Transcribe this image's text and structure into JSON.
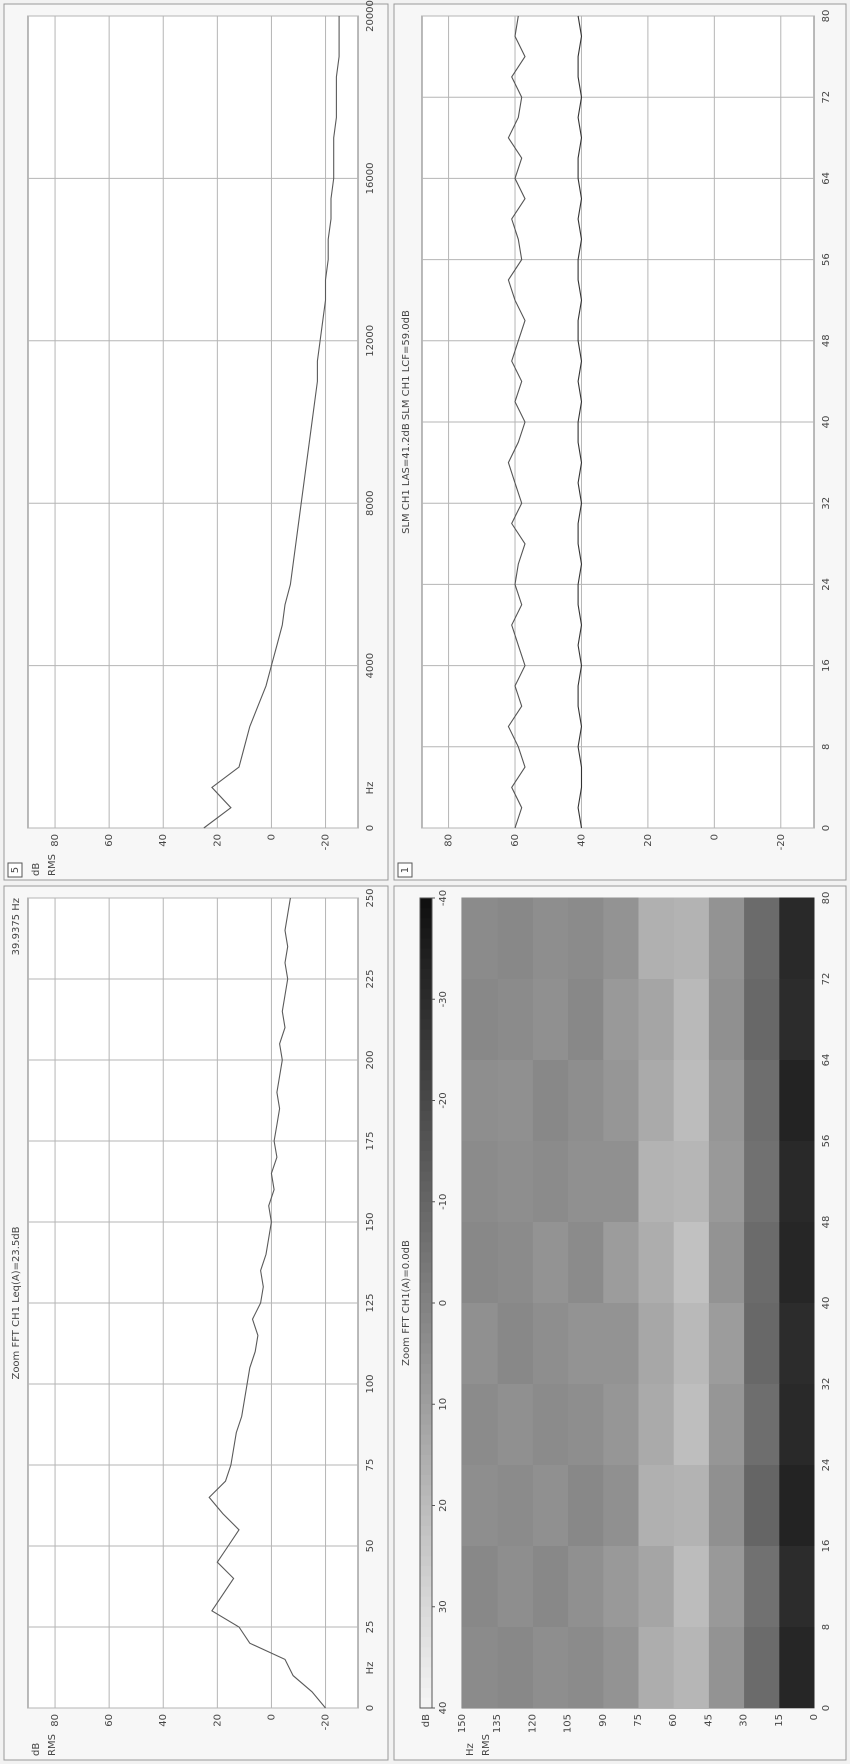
{
  "chart_data": [
    {
      "type": "line",
      "title": "Zoom FFT CH1 Leq(A)=23.5dB",
      "readout": "39.9375 Hz",
      "xlabel": "Hz",
      "ylabel": [
        "dB",
        "RMS"
      ],
      "x": [
        0,
        5,
        10,
        15,
        20,
        25,
        30,
        35,
        40,
        45,
        50,
        55,
        60,
        65,
        70,
        75,
        80,
        85,
        90,
        95,
        100,
        105,
        110,
        115,
        120,
        125,
        130,
        135,
        140,
        145,
        150,
        155,
        160,
        165,
        170,
        175,
        180,
        185,
        190,
        195,
        200,
        205,
        210,
        215,
        220,
        225,
        230,
        235,
        240,
        245,
        250
      ],
      "values": [
        -20,
        -15,
        -8,
        -5,
        8,
        12,
        22,
        18,
        14,
        20,
        16,
        12,
        18,
        23,
        17,
        15,
        14,
        13,
        11,
        10,
        9,
        8,
        6,
        5,
        7,
        4,
        3,
        4,
        2,
        1,
        0,
        1,
        -1,
        0,
        -2,
        -1,
        -2,
        -3,
        -2,
        -3,
        -4,
        -3,
        -5,
        -4,
        -5,
        -6,
        -5,
        -6,
        -5,
        -6,
        -7
      ],
      "color": "#5a5a5a",
      "xlim": [
        0,
        250
      ],
      "xticks": [
        0,
        25,
        50,
        75,
        100,
        125,
        150,
        175,
        200,
        225,
        250
      ],
      "ylim": [
        -32,
        90
      ],
      "yticks": [
        -20,
        0,
        20,
        40,
        60,
        80
      ],
      "grid": true
    },
    {
      "type": "line",
      "panel_id": "5",
      "xlabel": "Hz",
      "ylabel": [
        "dB",
        "RMS"
      ],
      "x": [
        0,
        500,
        1000,
        1500,
        2000,
        2500,
        3000,
        3500,
        4000,
        4500,
        5000,
        5500,
        6000,
        6500,
        7000,
        7500,
        8000,
        8500,
        9000,
        9500,
        10000,
        10500,
        11000,
        11500,
        12000,
        12500,
        13000,
        13500,
        14000,
        14500,
        15000,
        15500,
        16000,
        16500,
        17000,
        17500,
        18000,
        18500,
        19000,
        19500,
        20000
      ],
      "values": [
        25,
        15,
        22,
        12,
        10,
        8,
        5,
        2,
        0,
        -2,
        -4,
        -5,
        -7,
        -8,
        -9,
        -10,
        -11,
        -12,
        -13,
        -14,
        -15,
        -16,
        -17,
        -17,
        -18,
        -19,
        -20,
        -20,
        -21,
        -21,
        -22,
        -22,
        -23,
        -23,
        -23,
        -24,
        -24,
        -24,
        -25,
        -25,
        -25
      ],
      "color": "#5a5a5a",
      "xlim": [
        0,
        20000
      ],
      "xticks": [
        0,
        4000,
        8000,
        12000,
        16000,
        20000
      ],
      "ylim": [
        -32,
        90
      ],
      "yticks": [
        -20,
        0,
        20,
        40,
        60,
        80
      ],
      "grid": true
    },
    {
      "type": "heatmap",
      "title": "Zoom FFT CH1(A)=0.0dB",
      "ylabel": [
        "Hz",
        "RMS"
      ],
      "x_edges": [
        0,
        8,
        16,
        24,
        32,
        40,
        48,
        56,
        64,
        72,
        80
      ],
      "y_edges": [
        0,
        15,
        30,
        45,
        60,
        75,
        90,
        105,
        120,
        135,
        150
      ],
      "z": [
        [
          -32,
          -30,
          -33,
          -31,
          -30,
          -32,
          -31,
          -33,
          -30,
          -31
        ],
        [
          -8,
          -6,
          -10,
          -7,
          -9,
          -8,
          -6,
          -7,
          -9,
          -8
        ],
        [
          6,
          8,
          5,
          7,
          9,
          6,
          8,
          7,
          5,
          6
        ],
        [
          18,
          20,
          17,
          21,
          19,
          22,
          18,
          20,
          19,
          17
        ],
        [
          15,
          12,
          16,
          14,
          13,
          15,
          17,
          14,
          12,
          16
        ],
        [
          6,
          8,
          5,
          7,
          6,
          9,
          5,
          7,
          8,
          6
        ],
        [
          3,
          5,
          2,
          4,
          6,
          3,
          5,
          4,
          2,
          3
        ],
        [
          4,
          2,
          5,
          3,
          4,
          6,
          3,
          2,
          5,
          4
        ],
        [
          2,
          4,
          3,
          5,
          2,
          3,
          4,
          5,
          3,
          2
        ],
        [
          3,
          2,
          4,
          3,
          5,
          2,
          3,
          4,
          2,
          3
        ]
      ],
      "xlim": [
        0,
        80
      ],
      "xticks": [
        0,
        8,
        16,
        24,
        32,
        40,
        48,
        56,
        64,
        72,
        80
      ],
      "ylim": [
        0,
        150
      ],
      "yticks": [
        0,
        15,
        30,
        45,
        60,
        75,
        90,
        105,
        120,
        135,
        150
      ],
      "colorbar": {
        "label": "dB",
        "lim": [
          40,
          -40
        ],
        "ticks": [
          40,
          30,
          20,
          10,
          0,
          -10,
          -20,
          -30,
          -40
        ]
      }
    },
    {
      "type": "line",
      "panel_id": "1",
      "title": "SLM CH1 LAS=41.2dB  SLM CH1 LCF=59.0dB",
      "x": [
        0,
        2,
        4,
        6,
        8,
        10,
        12,
        14,
        16,
        18,
        20,
        22,
        24,
        26,
        28,
        30,
        32,
        34,
        36,
        38,
        40,
        42,
        44,
        46,
        48,
        50,
        52,
        54,
        56,
        58,
        60,
        62,
        64,
        66,
        68,
        70,
        72,
        74,
        76,
        78,
        80
      ],
      "series": [
        {
          "color": "#555555",
          "values": [
            60,
            58,
            61,
            57,
            59,
            62,
            58,
            60,
            57,
            59,
            61,
            58,
            60,
            59,
            57,
            61,
            58,
            60,
            62,
            59,
            57,
            60,
            58,
            61,
            59,
            57,
            60,
            62,
            58,
            59,
            61,
            57,
            60,
            58,
            62,
            59,
            58,
            61,
            57,
            60,
            59
          ]
        },
        {
          "color": "#333333",
          "values": [
            40,
            41,
            40,
            40,
            41,
            40,
            41,
            41,
            40,
            41,
            40,
            41,
            41,
            40,
            41,
            41,
            40,
            41,
            40,
            41,
            41,
            40,
            41,
            40,
            41,
            41,
            40,
            41,
            41,
            40,
            41,
            40,
            41,
            41,
            40,
            41,
            40,
            41,
            41,
            40,
            41
          ]
        }
      ],
      "xlim": [
        0,
        80
      ],
      "xticks": [
        0,
        8,
        16,
        24,
        32,
        40,
        48,
        56,
        64,
        72,
        80
      ],
      "ylim": [
        -30,
        88
      ],
      "yticks": [
        -20,
        0,
        20,
        40,
        60,
        80
      ],
      "grid": true
    }
  ]
}
